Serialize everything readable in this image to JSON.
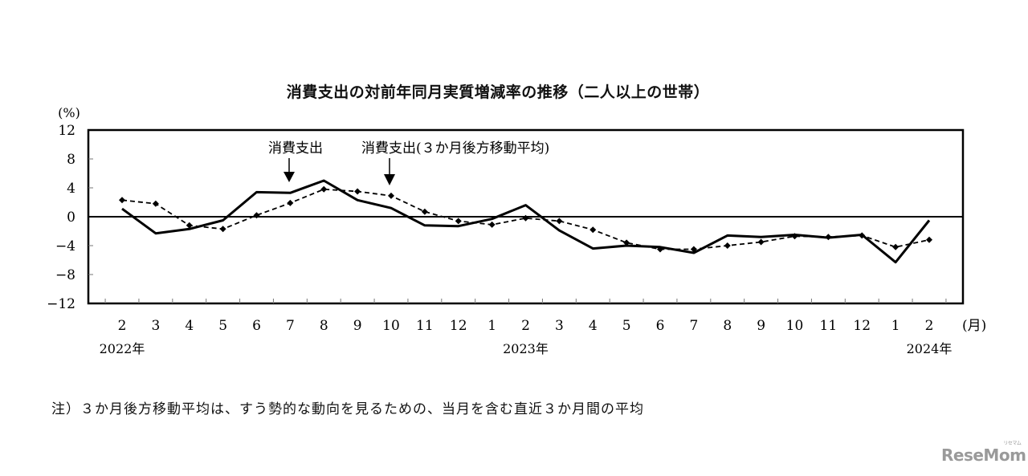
{
  "chart_data": {
    "type": "line",
    "title": "消費支出の対前年同月実質増減率の推移（二人以上の世帯）",
    "ylabel": "(%)",
    "xlabel": "(月)",
    "ylim": [
      -12,
      12
    ],
    "yticks": [
      12,
      8,
      4,
      0,
      -4,
      -8,
      -12
    ],
    "x": [
      "2",
      "3",
      "4",
      "5",
      "6",
      "7",
      "8",
      "9",
      "10",
      "11",
      "12",
      "1",
      "2",
      "3",
      "4",
      "5",
      "6",
      "7",
      "8",
      "9",
      "10",
      "11",
      "12",
      "1",
      "2"
    ],
    "year_labels": [
      {
        "index": 0,
        "label": "2022年"
      },
      {
        "index": 12,
        "label": "2023年"
      },
      {
        "index": 24,
        "label": "2024年"
      }
    ],
    "series": [
      {
        "name": "消費支出",
        "style": "solid",
        "values": [
          1.1,
          -2.3,
          -1.7,
          -0.5,
          3.4,
          3.3,
          5.0,
          2.3,
          1.2,
          -1.2,
          -1.3,
          -0.3,
          1.6,
          -1.9,
          -4.4,
          -4.0,
          -4.2,
          -5.0,
          -2.6,
          -2.8,
          -2.5,
          -2.9,
          -2.5,
          -6.3,
          -0.5
        ]
      },
      {
        "name": "消費支出（３か月後方移動平均）",
        "style": "dashed",
        "values": [
          2.3,
          1.8,
          -1.2,
          -1.7,
          0.2,
          1.9,
          3.8,
          3.5,
          2.9,
          0.7,
          -0.6,
          -1.1,
          -0.2,
          -0.6,
          -1.8,
          -3.6,
          -4.5,
          -4.5,
          -4.0,
          -3.5,
          -2.7,
          -2.8,
          -2.6,
          -4.2,
          -3.2
        ]
      }
    ],
    "annotations": [
      {
        "text": "消費支出",
        "arrow_index": 5
      },
      {
        "text": "消費支出（３か月後方移動平均）",
        "arrow_index": 8
      }
    ],
    "grid": false,
    "legend": "inline annotations with arrows"
  },
  "header": {
    "title": "消費支出の対前年同月実質増減率の推移（二人以上の世帯）"
  },
  "axis": {
    "y_unit": "(%)",
    "x_unit": "(月)"
  },
  "labels": {
    "series1": "消費支出",
    "series2": "消費支出(３か月後方移動平均)"
  },
  "footnote": "注）３か月後方移動平均は、すう勢的な動向を見るための、当月を含む直近３か月間の平均",
  "logo": {
    "text": "ReseMom",
    "kana": "リセマム"
  }
}
